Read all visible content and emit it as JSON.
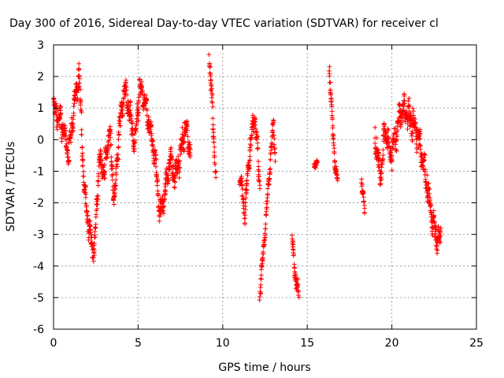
{
  "chart_data": {
    "type": "scatter",
    "title": "Day 300 of 2016, Sidereal Day-to-day VTEC variation (SDTVAR) for receiver cl",
    "xlabel": "GPS time / hours",
    "ylabel": "SDTVAR / TECUs",
    "xlim": [
      0,
      25
    ],
    "ylim": [
      -6,
      3
    ],
    "xticks": [
      0,
      5,
      10,
      15,
      20,
      25
    ],
    "yticks": [
      -6,
      -5,
      -4,
      -3,
      -2,
      -1,
      0,
      1,
      2,
      3
    ],
    "grid": true,
    "marker": "+",
    "color": "#ff0000",
    "segments": [
      {
        "x": [
          0.0,
          0.3,
          0.6,
          0.9,
          1.2,
          1.5,
          1.8,
          2.1,
          2.4,
          2.7,
          3.0,
          3.3,
          3.6,
          3.9,
          4.2,
          4.5,
          4.8,
          5.1,
          5.4,
          5.7,
          6.0,
          6.3,
          6.6,
          6.9,
          7.2,
          7.5,
          7.8,
          8.1
        ],
        "y": [
          1.0,
          0.7,
          0.3,
          -0.5,
          1.0,
          2.2,
          -1.5,
          -2.8,
          -3.6,
          -0.6,
          -1.0,
          0.3,
          -2.0,
          0.5,
          1.6,
          0.8,
          -0.2,
          1.7,
          1.2,
          0.4,
          -0.6,
          -2.4,
          -1.6,
          -0.6,
          -1.2,
          -0.4,
          0.4,
          -0.3
        ],
        "spread": 0.7
      },
      {
        "x": [
          9.2,
          9.4,
          9.6
        ],
        "y": [
          2.7,
          0.8,
          -1.2
        ],
        "spread": 0.6
      },
      {
        "x": [
          11.0,
          11.3,
          11.6,
          11.9,
          12.2
        ],
        "y": [
          -1.0,
          -2.3,
          -0.3,
          0.8,
          -1.5
        ],
        "spread": 0.6
      },
      {
        "x": [
          12.2,
          13.0,
          13.1
        ],
        "y": [
          -4.9,
          0.5,
          -0.6
        ],
        "spread": 0.4
      },
      {
        "x": [
          14.1,
          14.3,
          14.5
        ],
        "y": [
          -3.2,
          -4.3,
          -5.0
        ],
        "spread": 0.4
      },
      {
        "x": [
          15.4,
          15.6
        ],
        "y": [
          -0.8,
          -0.7
        ],
        "spread": 0.2
      },
      {
        "x": [
          16.3,
          16.4,
          16.6,
          16.8
        ],
        "y": [
          2.1,
          1.5,
          -0.6,
          -1.3
        ],
        "spread": 0.4
      },
      {
        "x": [
          18.2,
          18.4
        ],
        "y": [
          -1.3,
          -2.3
        ],
        "spread": 0.3
      },
      {
        "x": [
          19.0,
          19.3,
          19.6,
          19.9,
          20.2,
          20.5,
          20.8,
          21.1,
          21.4,
          21.7,
          22.0,
          22.3,
          22.6,
          22.9
        ],
        "y": [
          0.3,
          -1.2,
          0.4,
          -0.5,
          0.0,
          0.8,
          0.9,
          0.6,
          0.4,
          -0.3,
          -1.2,
          -2.2,
          -3.0,
          -3.3
        ],
        "spread": 0.8
      }
    ]
  }
}
